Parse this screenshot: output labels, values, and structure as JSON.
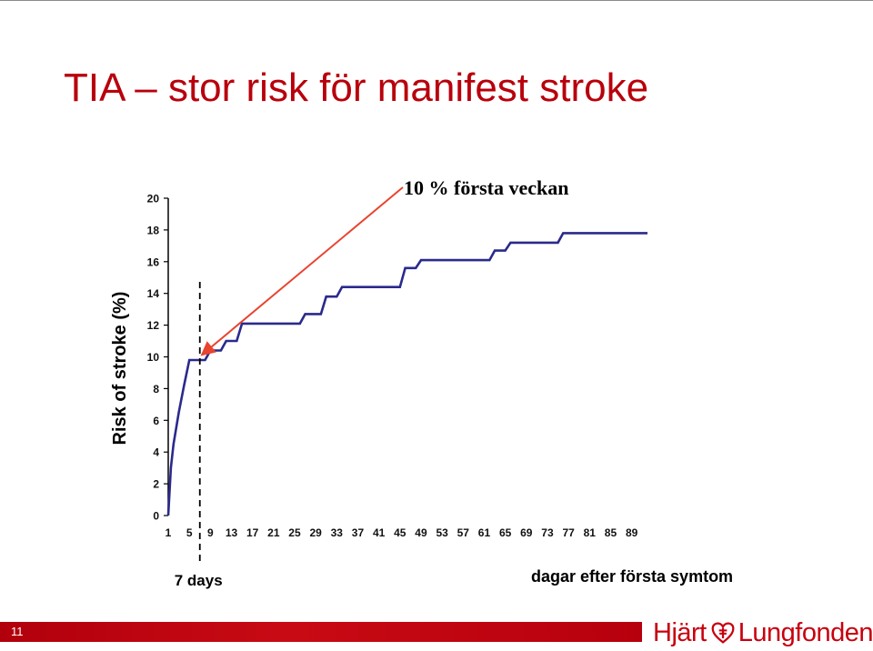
{
  "slide": {
    "title": "TIA – stor risk för manifest stroke",
    "page_number": "11"
  },
  "logo": {
    "left_text": "Hjärt",
    "right_text": "Lungfonden",
    "icon": "heart-cross-icon",
    "color": "#c8000e"
  },
  "colors": {
    "title": "#b8000b",
    "series_line": "#2a2a8c",
    "annotation_arrow": "#e8442f",
    "footer_bar": "#b8000b"
  },
  "chart_data": {
    "type": "line",
    "title": "",
    "ylabel": "Risk of stroke (%)",
    "xlabel": "dagar efter första symtom",
    "ylim": [
      0,
      20
    ],
    "xlim": [
      1,
      92
    ],
    "yticks": [
      "0",
      "2",
      "4",
      "6",
      "8",
      "10",
      "12",
      "14",
      "16",
      "18",
      "20"
    ],
    "xticks": [
      "1",
      "5",
      "9",
      "13",
      "17",
      "21",
      "25",
      "29",
      "33",
      "37",
      "41",
      "45",
      "49",
      "53",
      "57",
      "61",
      "65",
      "69",
      "73",
      "77",
      "81",
      "85",
      "89"
    ],
    "grid": false,
    "series": [
      {
        "points": [
          [
            1,
            0
          ],
          [
            1.5,
            3
          ],
          [
            2,
            4.5
          ],
          [
            3,
            6.5
          ],
          [
            4,
            8.2
          ],
          [
            5,
            9.8
          ],
          [
            8,
            9.8
          ],
          [
            9,
            10.4
          ],
          [
            11,
            10.4
          ],
          [
            12,
            11
          ],
          [
            14,
            11
          ],
          [
            15,
            12.1
          ],
          [
            26,
            12.1
          ],
          [
            27,
            12.7
          ],
          [
            30,
            12.7
          ],
          [
            31,
            13.8
          ],
          [
            33,
            13.8
          ],
          [
            34,
            14.4
          ],
          [
            45,
            14.4
          ],
          [
            46,
            15.6
          ],
          [
            48,
            15.6
          ],
          [
            49,
            16.1
          ],
          [
            62,
            16.1
          ],
          [
            63,
            16.7
          ],
          [
            65,
            16.7
          ],
          [
            66,
            17.2
          ],
          [
            75,
            17.2
          ],
          [
            76,
            17.8
          ],
          [
            92,
            17.8
          ]
        ]
      }
    ],
    "annotations": {
      "arrow_label": "10 % första veckan",
      "arrow_target": [
        7,
        10
      ],
      "marker_line_x": 7,
      "marker_label": "7 days"
    }
  }
}
